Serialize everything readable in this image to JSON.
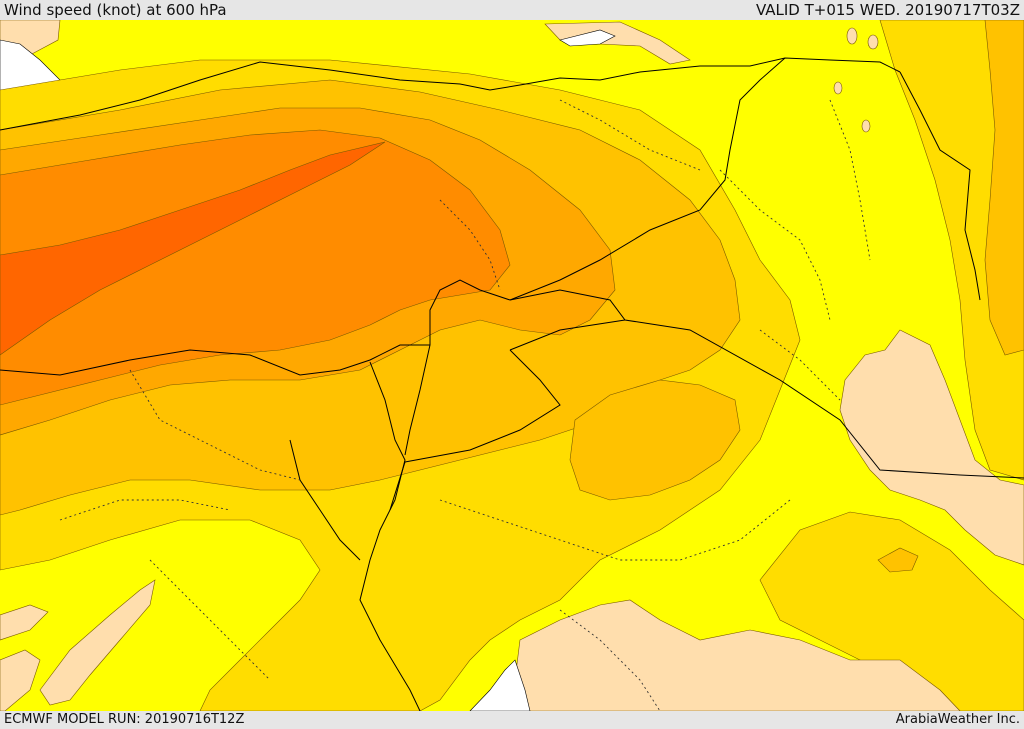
{
  "header": {
    "title": "Wind speed (knot) at 600 hPa",
    "valid": "VALID T+015 WED. 20190717T03Z"
  },
  "footer": {
    "model_run": "ECMWF MODEL RUN: 20190716T12Z",
    "credit": "ArabiaWeather Inc."
  },
  "colors": {
    "sea": "#ffffff",
    "band_light": "#ffdead",
    "band_yellow": "#ffff00",
    "band_gold": "#ffdd00",
    "band_amber": "#ffc200",
    "band_orange_light": "#ffa800",
    "band_orange": "#ff8c00",
    "band_dark": "#ff6600",
    "border": "#000000",
    "contour": "#7a5a00"
  }
}
